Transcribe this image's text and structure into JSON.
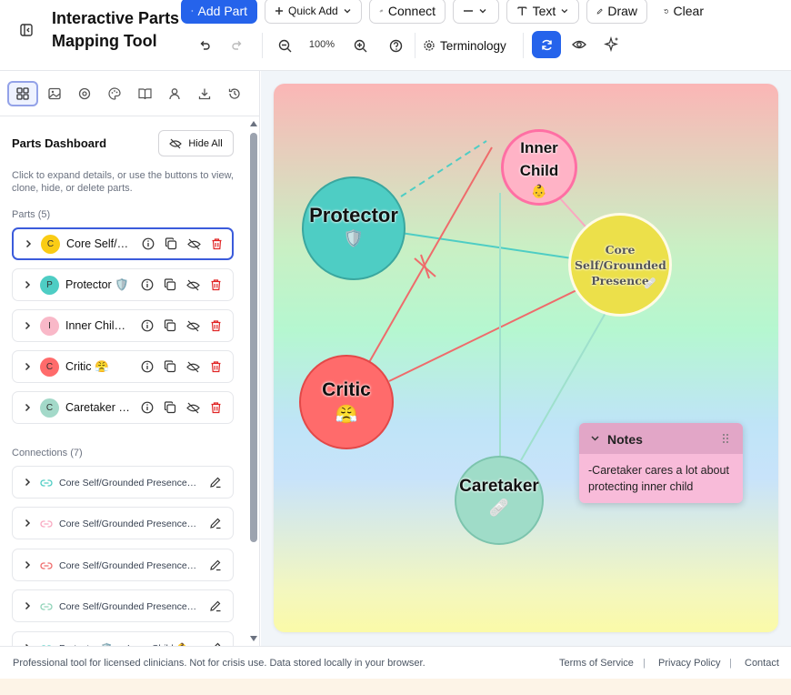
{
  "app": {
    "title": "Interactive Parts Mapping Tool"
  },
  "toolbar": {
    "add_part": "Add Part",
    "quick_add": "Quick Add",
    "connect": "Connect",
    "text": "Text",
    "draw": "Draw",
    "clear": "Clear",
    "zoom": "100%",
    "terminology": "Terminology"
  },
  "sidebar": {
    "tabs": [
      "dashboard-icon",
      "image-icon",
      "target-icon",
      "palette-icon",
      "book-icon",
      "user-icon",
      "download-icon",
      "history-icon"
    ],
    "dashboard_title": "Parts Dashboard",
    "hide_all": "Hide All",
    "description": "Click to expand details, or use the buttons to view, clone, hide, or delete parts.",
    "parts_heading": "Parts (5)",
    "parts": [
      {
        "initial": "C",
        "name": "Core Self/Grounded Presence",
        "color": "#facc15",
        "selected": true
      },
      {
        "initial": "P",
        "name": "Protector 🛡️",
        "color": "#4ecdc4",
        "selected": false
      },
      {
        "initial": "I",
        "name": "Inner Child 👶",
        "color": "#f9b8c8",
        "selected": false
      },
      {
        "initial": "C",
        "name": "Critic 😤",
        "color": "#ff6b6b",
        "selected": false
      },
      {
        "initial": "C",
        "name": "Caretaker 🩹",
        "color": "#a3d9c9",
        "selected": false
      }
    ],
    "connections_heading": "Connections (7)",
    "connections": [
      {
        "label": "Core Self/Grounded Presence 🩹",
        "color": "#4ecdc4"
      },
      {
        "label": "Core Self/Grounded Presence 🩹",
        "color": "#f9a8c0"
      },
      {
        "label": "Core Self/Grounded Presence 🩹",
        "color": "#ef6b6b"
      },
      {
        "label": "Core Self/Grounded Presence 🩹",
        "color": "#8fd3b8"
      },
      {
        "label": "Protector 🛡️ — Inner Child 👶",
        "color": "#4ecdc4"
      }
    ]
  },
  "canvas": {
    "nodes": [
      {
        "name": "Protector",
        "emoji": "🛡️",
        "color": "#4ecdc4"
      },
      {
        "name": "Inner Child",
        "emoji": "👶",
        "color": "#ffb3c6"
      },
      {
        "name": "Core Self/Grounded Presence",
        "emoji": "🩹",
        "color": "#ece04a"
      },
      {
        "name": "Critic",
        "emoji": "😤",
        "color": "#ff6b6b"
      },
      {
        "name": "Caretaker",
        "emoji": "🩹",
        "color": "#9fdcc8"
      }
    ],
    "notes": {
      "title": "Notes",
      "text": "-Caretaker cares a lot about protecting inner child"
    }
  },
  "footer": {
    "note": "Professional tool for licensed clinicians. Not for crisis use. Data stored locally in your browser.",
    "terms": "Terms of Service",
    "privacy": "Privacy Policy",
    "contact": "Contact"
  }
}
